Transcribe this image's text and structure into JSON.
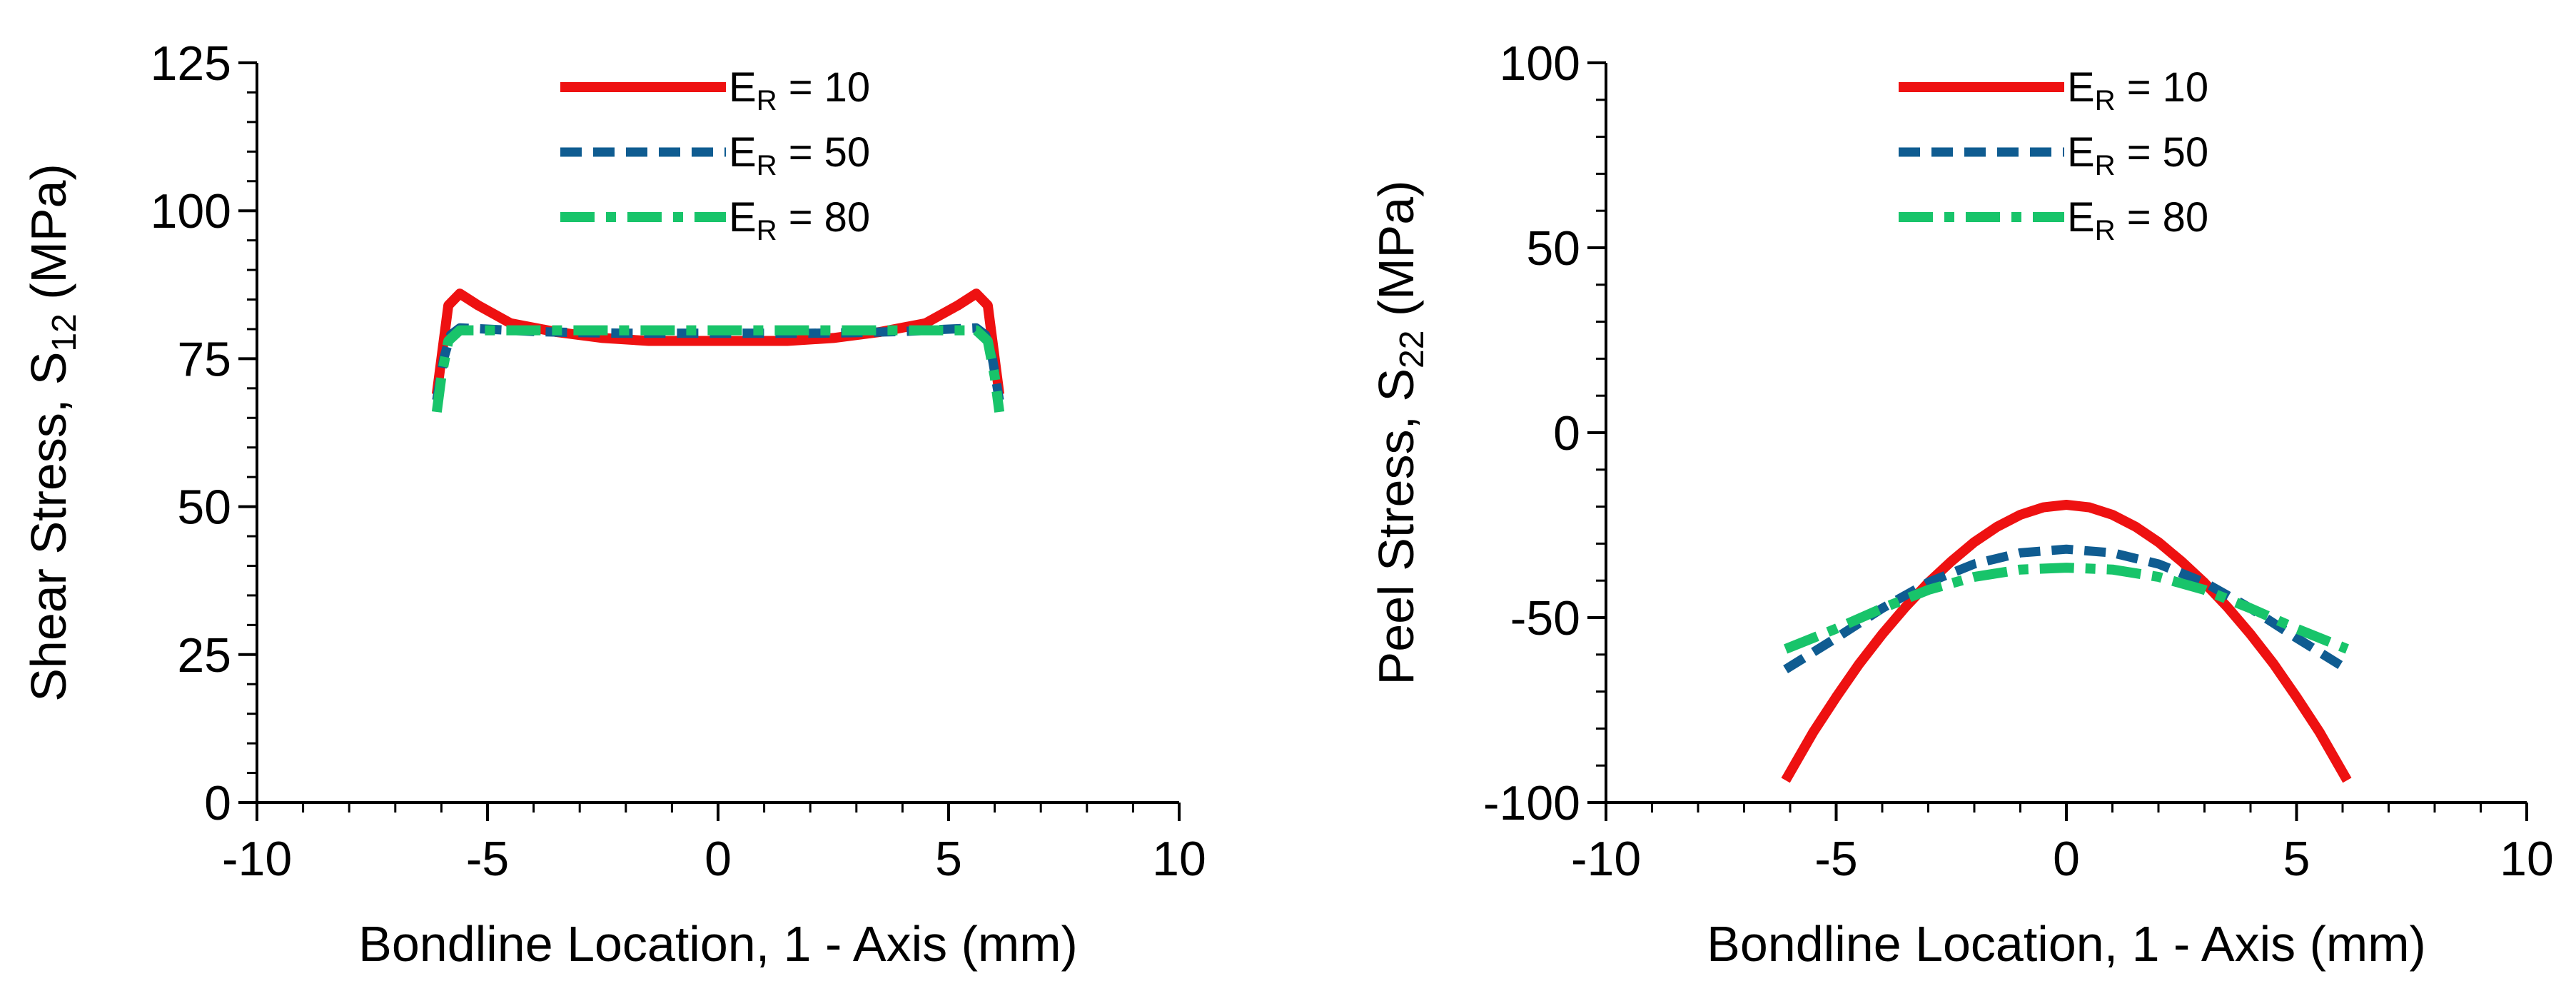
{
  "chart_data": [
    {
      "type": "line",
      "id": "shear",
      "ylabel_main": "Shear Stress, S",
      "ylabel_sub": "12",
      "ylabel_unit": " (MPa)",
      "xlabel": "Bondline Location, 1 - Axis (mm)",
      "xlim": [
        -10,
        10
      ],
      "ylim": [
        0,
        125
      ],
      "xticks": [
        -10,
        -5,
        0,
        5,
        10
      ],
      "yticks": [
        0,
        25,
        50,
        75,
        100,
        125
      ],
      "grid": false,
      "legend_position": "top-center",
      "series": [
        {
          "name_main": "E",
          "name_sub": "R",
          "name_rest": " = 10",
          "color": "#ee1111",
          "dash": "solid",
          "x": [
            -6.1,
            -5.85,
            -5.6,
            -5.2,
            -4.5,
            -3.5,
            -2.5,
            -1.5,
            -0.5,
            0,
            0.5,
            1.5,
            2.5,
            3.5,
            4.5,
            5.2,
            5.6,
            5.85,
            6.1
          ],
          "y": [
            69,
            84,
            86,
            84,
            81,
            79.5,
            78.5,
            78,
            78,
            78,
            78,
            78,
            78.5,
            79.5,
            81,
            84,
            86,
            84,
            69
          ]
        },
        {
          "name_main": "E",
          "name_sub": "R",
          "name_rest": " = 50",
          "color": "#0f5c91",
          "dash": "dash",
          "x": [
            -6.1,
            -5.95,
            -5.8,
            -5.6,
            -5,
            -4,
            -3,
            -2,
            -1,
            0,
            1,
            2,
            3,
            4,
            5,
            5.6,
            5.8,
            5.95,
            6.1
          ],
          "y": [
            68,
            75,
            79,
            80.2,
            80,
            79.6,
            79.4,
            79.3,
            79.3,
            79.3,
            79.3,
            79.3,
            79.4,
            79.6,
            80,
            80.2,
            79,
            75,
            68
          ]
        },
        {
          "name_main": "E",
          "name_sub": "R",
          "name_rest": " = 80",
          "color": "#18c46a",
          "dash": "dashdot",
          "x": [
            -6.1,
            -6.0,
            -5.85,
            -5.6,
            -5,
            -4,
            -3,
            -2,
            -1,
            0,
            1,
            2,
            3,
            4,
            5,
            5.6,
            5.85,
            6.0,
            6.1
          ],
          "y": [
            66,
            72,
            78,
            79.8,
            79.8,
            79.8,
            79.8,
            79.8,
            79.8,
            79.8,
            79.8,
            79.8,
            79.8,
            79.8,
            79.8,
            79.8,
            78,
            72,
            66
          ]
        }
      ]
    },
    {
      "type": "line",
      "id": "peel",
      "ylabel_main": "Peel Stress, S",
      "ylabel_sub": "22",
      "ylabel_unit": " (MPa)",
      "xlabel": "Bondline Location, 1 - Axis (mm)",
      "xlim": [
        -10,
        10
      ],
      "ylim": [
        -100,
        100
      ],
      "xticks": [
        -10,
        -5,
        0,
        5,
        10
      ],
      "yticks": [
        -100,
        -50,
        0,
        50,
        100
      ],
      "grid": false,
      "legend_position": "top-center",
      "series": [
        {
          "name_main": "E",
          "name_sub": "R",
          "name_rest": " = 10",
          "color": "#ee1111",
          "dash": "solid",
          "x": [
            -6.1,
            -5.5,
            -5,
            -4.5,
            -4,
            -3.5,
            -3,
            -2.5,
            -2,
            -1.5,
            -1,
            -0.5,
            0,
            0.5,
            1,
            1.5,
            2,
            2.5,
            3,
            3.5,
            4,
            4.5,
            5,
            5.5,
            6.1
          ],
          "y": [
            -94,
            -81,
            -71.5,
            -62.5,
            -54.5,
            -47.2,
            -40.6,
            -34.8,
            -29.6,
            -25.4,
            -22.2,
            -20.2,
            -19.5,
            -20.2,
            -22.2,
            -25.4,
            -29.6,
            -34.8,
            -40.6,
            -47.2,
            -54.5,
            -62.5,
            -71.5,
            -81,
            -94
          ]
        },
        {
          "name_main": "E",
          "name_sub": "R",
          "name_rest": " = 50",
          "color": "#0f5c91",
          "dash": "dash",
          "x": [
            -6.1,
            -5,
            -4,
            -3,
            -2,
            -1,
            0,
            1,
            2,
            3,
            4,
            5,
            6.1
          ],
          "y": [
            -64,
            -55.5,
            -47.5,
            -40.5,
            -35.5,
            -32.5,
            -31.5,
            -32.5,
            -35.5,
            -40.5,
            -47.5,
            -55.5,
            -64
          ]
        },
        {
          "name_main": "E",
          "name_sub": "R",
          "name_rest": " = 80",
          "color": "#18c46a",
          "dash": "dashdot",
          "x": [
            -6.1,
            -5,
            -4,
            -3,
            -2,
            -1,
            0,
            1,
            2,
            3,
            4,
            5,
            6.1
          ],
          "y": [
            -58.5,
            -53,
            -47.5,
            -42.5,
            -39,
            -37,
            -36.5,
            -37,
            -39,
            -42.5,
            -47.5,
            -53,
            -58.5
          ]
        }
      ]
    }
  ]
}
